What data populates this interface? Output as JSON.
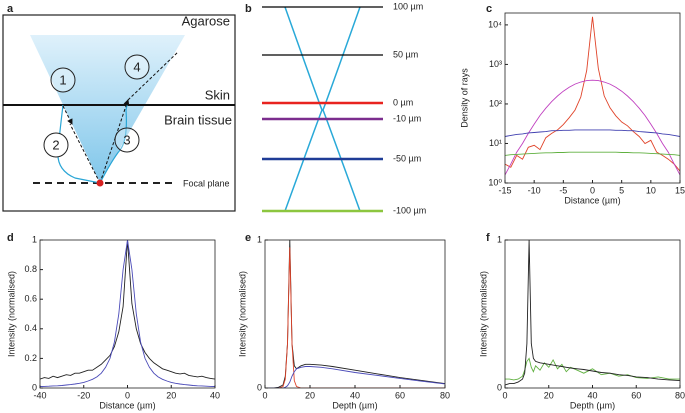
{
  "panel_labels": [
    "a",
    "b",
    "c",
    "d",
    "e",
    "f"
  ],
  "diagram_a": {
    "medium": "Agarose",
    "skin": "Skin",
    "tissue": "Brain tissue",
    "focal_plane": "Focal plane",
    "markers": [
      "1",
      "2",
      "3",
      "4"
    ]
  },
  "diagram_b": {
    "levels": [
      {
        "label": "100 µm",
        "color": "#000000"
      },
      {
        "label": "50 µm",
        "color": "#000000"
      },
      {
        "label": "0 µm",
        "color": "#e8231f"
      },
      {
        "label": "-10 µm",
        "color": "#7b2d8e"
      },
      {
        "label": "-50 µm",
        "color": "#1f3c96"
      },
      {
        "label": "-100 µm",
        "color": "#8cc63f"
      }
    ]
  },
  "chart_data": [
    {
      "type": "line",
      "xlabel": "Distance (µm)",
      "ylabel": "Density of rays",
      "log_y": true,
      "x": [
        -15,
        -14,
        -13,
        -12,
        -11,
        -10,
        -9,
        -8,
        -7,
        -6,
        -5,
        -4,
        -3,
        -2,
        -1,
        0,
        1,
        2,
        3,
        4,
        5,
        6,
        7,
        8,
        9,
        10,
        11,
        12,
        13,
        14,
        15
      ],
      "xlim": [
        -15,
        15
      ],
      "xticks": [
        -15,
        -10,
        -5,
        0,
        5,
        10,
        15
      ],
      "ylim": [
        1,
        20000
      ],
      "yticks": [
        {
          "value": 1,
          "label": "10⁰"
        },
        {
          "value": 10,
          "label": "10¹"
        },
        {
          "value": 100,
          "label": "10²"
        },
        {
          "value": 1000,
          "label": "10³"
        },
        {
          "value": 10000,
          "label": "10⁴"
        }
      ],
      "series": [
        {
          "color": "#e0442a",
          "values": [
            3,
            2.5,
            5,
            4,
            8,
            9,
            7,
            14,
            18,
            22,
            30,
            45,
            70,
            150,
            700,
            16000,
            800,
            160,
            80,
            50,
            35,
            28,
            20,
            15,
            10,
            12,
            6,
            5,
            4,
            3,
            2
          ]
        },
        {
          "color": "#c040c0",
          "values": [
            1.6,
            3,
            6,
            10,
            18,
            31,
            51,
            78,
            115,
            159,
            210,
            265,
            318,
            360,
            390,
            400,
            390,
            360,
            318,
            265,
            210,
            159,
            115,
            78,
            51,
            31,
            18,
            10,
            6,
            3,
            1.6
          ]
        },
        {
          "color": "#4040b0",
          "values": [
            15,
            16,
            17,
            17.5,
            18.5,
            19,
            19.5,
            20,
            21,
            21,
            21.5,
            21.5,
            22,
            22,
            22,
            22,
            22,
            22,
            22,
            21.5,
            21.5,
            21,
            21,
            20,
            19.5,
            19,
            18.5,
            17.5,
            17,
            16,
            15
          ]
        },
        {
          "color": "#60b040",
          "values": [
            5,
            5.2,
            5.3,
            5.4,
            5.5,
            5.6,
            5.7,
            5.8,
            5.8,
            5.9,
            5.9,
            6,
            6,
            6,
            6,
            6,
            6,
            6,
            6,
            6,
            5.9,
            5.9,
            5.8,
            5.8,
            5.7,
            5.6,
            5.5,
            5.4,
            5.3,
            5.2,
            5
          ]
        }
      ]
    },
    {
      "type": "line",
      "xlabel": "Distance (µm)",
      "ylabel": "Intensity (normalised)",
      "x": [
        -40,
        -38,
        -36,
        -34,
        -32,
        -30,
        -28,
        -26,
        -24,
        -22,
        -20,
        -18,
        -16,
        -14,
        -12,
        -10,
        -8,
        -6,
        -4,
        -2,
        0,
        2,
        4,
        6,
        8,
        10,
        12,
        14,
        16,
        18,
        20,
        22,
        24,
        26,
        28,
        30,
        32,
        34,
        36,
        38,
        40
      ],
      "xlim": [
        -40,
        40
      ],
      "xticks": [
        -40,
        -20,
        0,
        20,
        40
      ],
      "ylim": [
        0,
        1
      ],
      "yticks": [
        0,
        0.2,
        0.4,
        0.6,
        0.8,
        1
      ],
      "series": [
        {
          "color": "#222222",
          "values": [
            0.06,
            0.07,
            0.065,
            0.08,
            0.07,
            0.08,
            0.09,
            0.085,
            0.1,
            0.1,
            0.11,
            0.12,
            0.12,
            0.14,
            0.16,
            0.19,
            0.22,
            0.28,
            0.38,
            0.55,
            1.0,
            0.57,
            0.4,
            0.3,
            0.24,
            0.2,
            0.17,
            0.15,
            0.13,
            0.12,
            0.11,
            0.1,
            0.095,
            0.1,
            0.085,
            0.08,
            0.075,
            0.08,
            0.07,
            0.065,
            0.06
          ]
        },
        {
          "color": "#4a4ab8",
          "values": [
            0.01,
            0.011,
            0.012,
            0.014,
            0.015,
            0.017,
            0.02,
            0.023,
            0.027,
            0.032,
            0.038,
            0.047,
            0.059,
            0.075,
            0.1,
            0.14,
            0.2,
            0.31,
            0.5,
            0.8,
            1,
            0.8,
            0.5,
            0.31,
            0.2,
            0.14,
            0.1,
            0.075,
            0.059,
            0.047,
            0.038,
            0.032,
            0.027,
            0.023,
            0.02,
            0.017,
            0.015,
            0.014,
            0.012,
            0.011,
            0.01
          ]
        }
      ]
    },
    {
      "type": "line",
      "xlabel": "Depth (µm)",
      "ylabel": "Intensity (normalised)",
      "x": [
        0,
        2,
        4,
        6,
        8,
        9,
        10,
        11,
        12,
        13,
        14,
        16,
        18,
        20,
        25,
        30,
        40,
        50,
        60,
        70,
        80
      ],
      "xlim": [
        0,
        80
      ],
      "xticks": [
        0,
        20,
        40,
        60,
        80
      ],
      "ylim": [
        0,
        1
      ],
      "yticks": [
        0,
        1
      ],
      "series": [
        {
          "color": "#222222",
          "values": [
            0,
            0,
            0,
            0.005,
            0.02,
            0.08,
            0.3,
            1.0,
            0.3,
            0.15,
            0.13,
            0.15,
            0.16,
            0.16,
            0.155,
            0.145,
            0.12,
            0.095,
            0.07,
            0.05,
            0.03
          ]
        },
        {
          "color": "#e0442a",
          "values": [
            0,
            0,
            0,
            0,
            0.01,
            0.06,
            0.3,
            0.95,
            0.3,
            0.05,
            0.01,
            0,
            0,
            0,
            0,
            0,
            0,
            0,
            0,
            0,
            0
          ]
        },
        {
          "color": "#4a4ab8",
          "values": [
            0,
            0,
            0,
            0,
            0,
            0.005,
            0.015,
            0.04,
            0.08,
            0.11,
            0.13,
            0.14,
            0.145,
            0.145,
            0.14,
            0.13,
            0.105,
            0.085,
            0.065,
            0.045,
            0.028
          ]
        }
      ]
    },
    {
      "type": "line",
      "xlabel": "Depth (µm)",
      "ylabel": "Intensity (normalised)",
      "x": [
        0,
        2,
        4,
        6,
        8,
        9,
        10,
        11,
        12,
        13,
        14,
        16,
        18,
        20,
        22,
        24,
        26,
        28,
        30,
        33,
        36,
        40,
        44,
        48,
        52,
        56,
        60,
        65,
        70,
        75,
        80
      ],
      "xlim": [
        0,
        80
      ],
      "xticks": [
        0,
        20,
        40,
        60,
        80
      ],
      "ylim": [
        0,
        1
      ],
      "yticks": [
        0,
        1
      ],
      "series": [
        {
          "color": "#60b040",
          "values": [
            0.06,
            0.06,
            0.055,
            0.06,
            0.08,
            0.12,
            0.18,
            0.2,
            0.14,
            0.11,
            0.15,
            0.12,
            0.17,
            0.14,
            0.19,
            0.13,
            0.16,
            0.11,
            0.14,
            0.12,
            0.1,
            0.13,
            0.09,
            0.1,
            0.08,
            0.09,
            0.07,
            0.065,
            0.075,
            0.06,
            0.06
          ]
        },
        {
          "color": "#222222",
          "values": [
            0.02,
            0.03,
            0.03,
            0.04,
            0.06,
            0.1,
            0.3,
            1.0,
            0.3,
            0.2,
            0.18,
            0.17,
            0.165,
            0.16,
            0.155,
            0.15,
            0.145,
            0.14,
            0.135,
            0.13,
            0.125,
            0.115,
            0.105,
            0.1,
            0.09,
            0.085,
            0.075,
            0.07,
            0.06,
            0.055,
            0.05
          ]
        }
      ]
    }
  ]
}
